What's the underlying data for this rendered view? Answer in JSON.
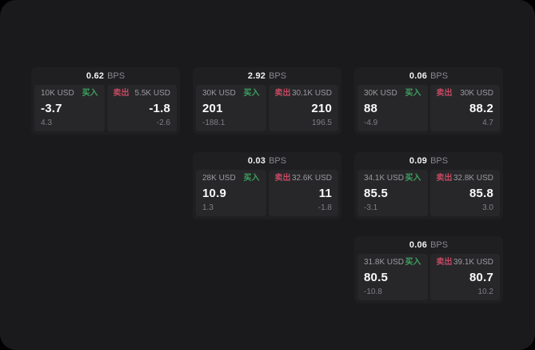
{
  "labels": {
    "buy": "买入",
    "sell": "卖出",
    "bps_unit": "BPS"
  },
  "colors": {
    "buy_green": "#3ea05f",
    "sell_red": "#c34a62",
    "page_bg": "#1a1a1c",
    "card_bg": "#1f1f22",
    "panel_bg": "#27272a"
  },
  "cards": [
    {
      "bps": "0.62",
      "col": 0,
      "row": 0,
      "buy": {
        "amount": "10K USD",
        "value": "-3.7",
        "sub": "4.3"
      },
      "sell": {
        "amount": "5.5K USD",
        "value": "-1.8",
        "sub": "-2.6"
      }
    },
    {
      "bps": "2.92",
      "col": 1,
      "row": 0,
      "buy": {
        "amount": "30K USD",
        "value": "201",
        "sub": "-188.1"
      },
      "sell": {
        "amount": "30.1K USD",
        "value": "210",
        "sub": "196.5"
      }
    },
    {
      "bps": "0.06",
      "col": 2,
      "row": 0,
      "buy": {
        "amount": "30K USD",
        "value": "88",
        "sub": "-4.9"
      },
      "sell": {
        "amount": "30K USD",
        "value": "88.2",
        "sub": "4.7"
      }
    },
    {
      "bps": "0.03",
      "col": 1,
      "row": 1,
      "buy": {
        "amount": "28K USD",
        "value": "10.9",
        "sub": "1.3"
      },
      "sell": {
        "amount": "32.6K USD",
        "value": "11",
        "sub": "-1.8"
      }
    },
    {
      "bps": "0.09",
      "col": 2,
      "row": 1,
      "buy": {
        "amount": "34.1K USD",
        "value": "85.5",
        "sub": "-3.1"
      },
      "sell": {
        "amount": "32.8K USD",
        "value": "85.8",
        "sub": "3.0"
      }
    },
    {
      "bps": "0.06",
      "col": 2,
      "row": 2,
      "buy": {
        "amount": "31.8K USD",
        "value": "80.5",
        "sub": "-10.8"
      },
      "sell": {
        "amount": "39.1K USD",
        "value": "80.7",
        "sub": "10.2"
      }
    }
  ]
}
